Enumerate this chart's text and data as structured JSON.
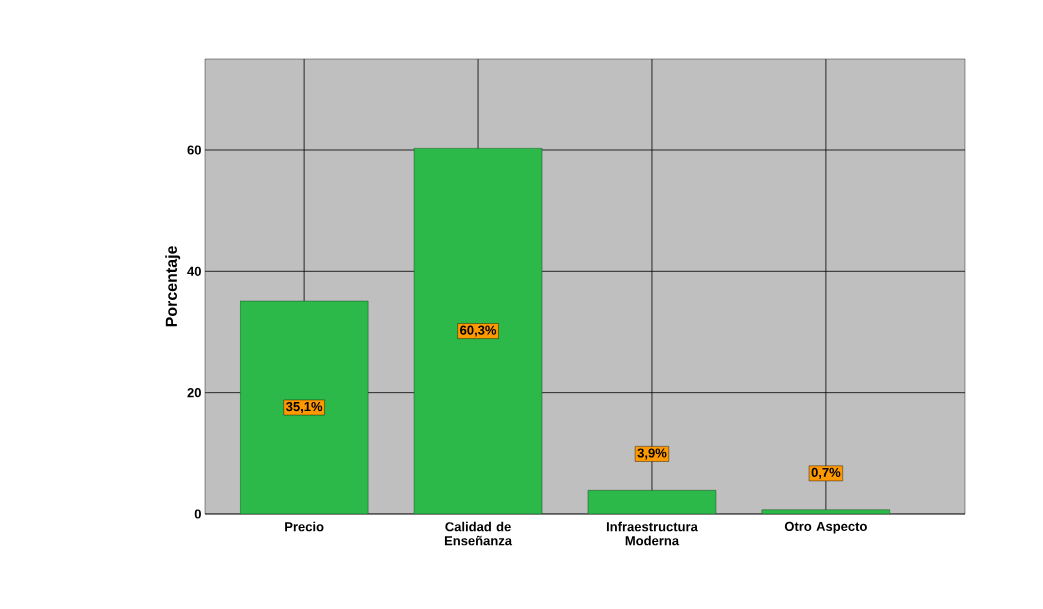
{
  "chart_data": {
    "type": "bar",
    "ylabel": "Porcentaje",
    "categories": [
      "Precio",
      "Calidad de Enseñanza",
      "Infraestructura Moderna",
      "Otro Aspecto"
    ],
    "values": [
      35.1,
      60.3,
      3.9,
      0.7
    ],
    "value_labels": [
      "35,1%",
      "60,3%",
      "3,9%",
      "0,7%"
    ],
    "color": "#2db84a",
    "ylim": [
      0,
      75
    ],
    "yticks": [
      0,
      20,
      40,
      60
    ],
    "grid": true
  }
}
